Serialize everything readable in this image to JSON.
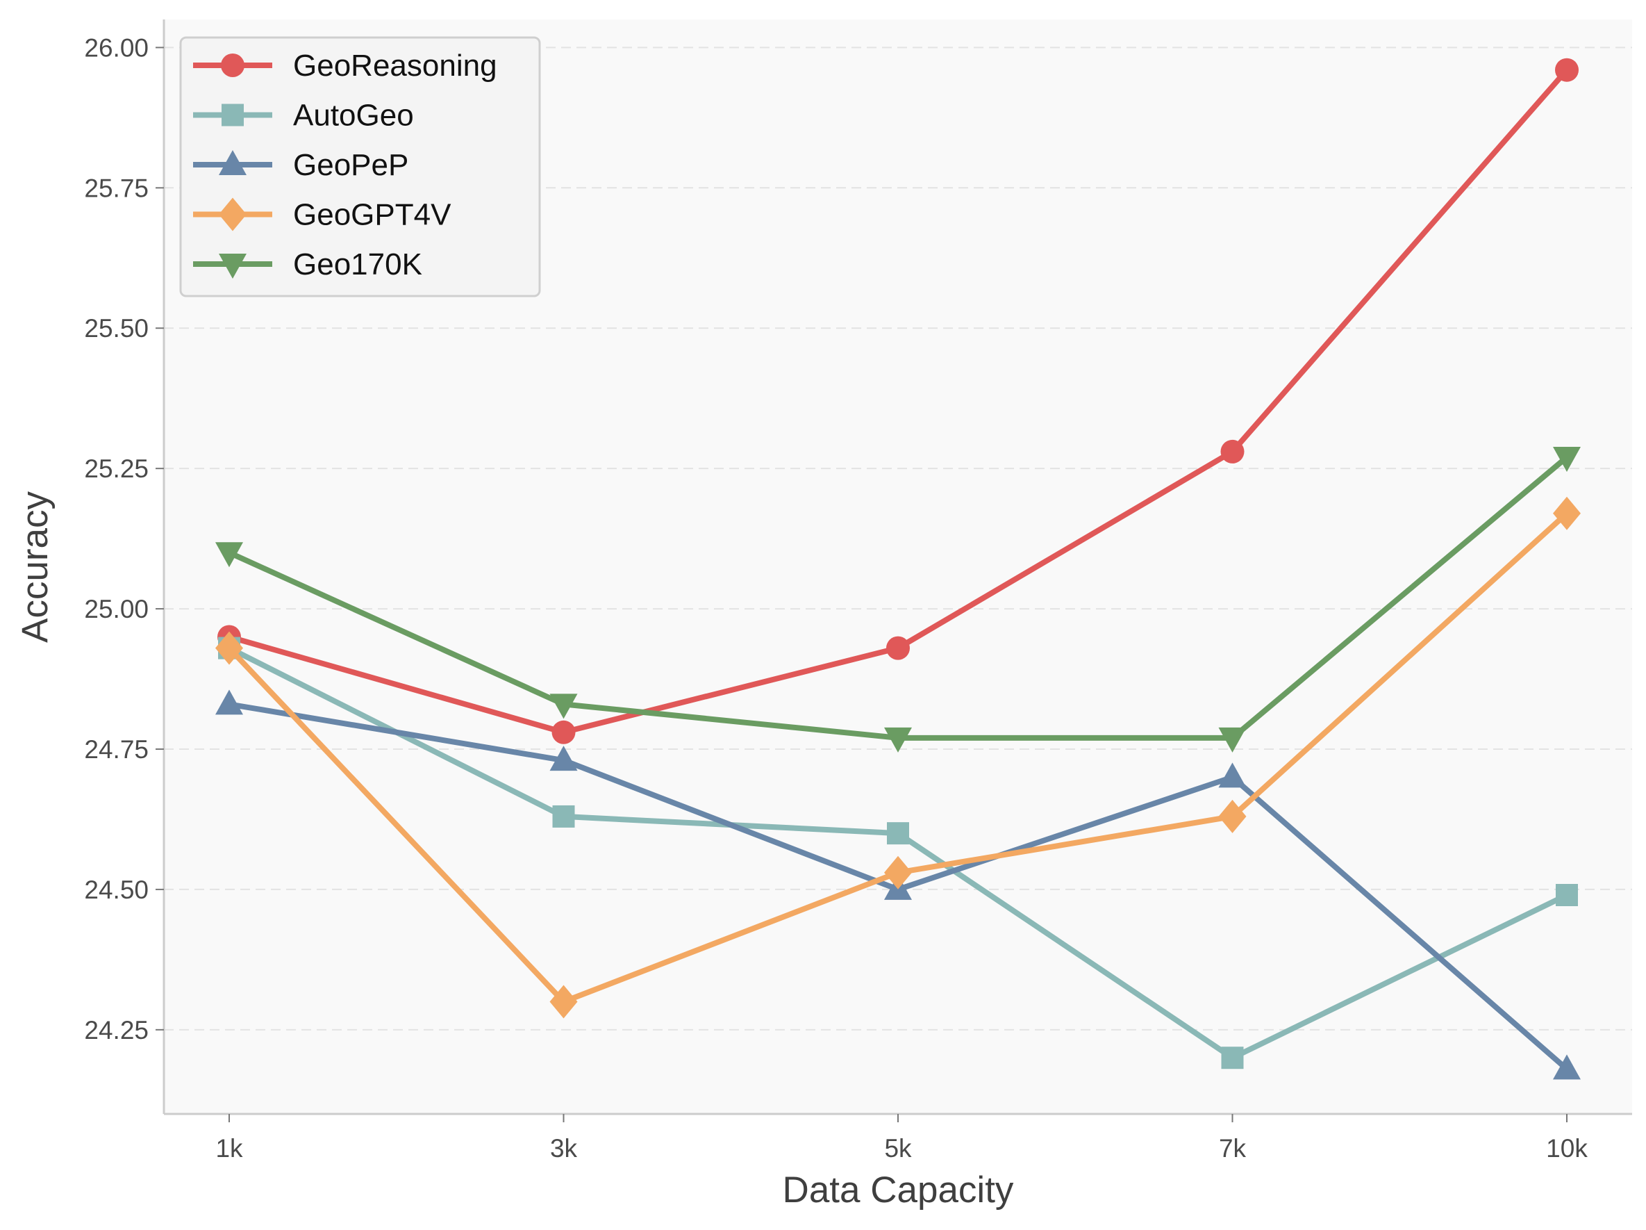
{
  "chart_data": {
    "type": "line",
    "title": "",
    "xlabel": "Data Capacity",
    "ylabel": "Accuracy",
    "categories": [
      "1k",
      "3k",
      "5k",
      "7k",
      "10k"
    ],
    "ylim": [
      24.1,
      26.05
    ],
    "yticks": [
      "24.25",
      "24.50",
      "24.75",
      "25.00",
      "25.25",
      "25.50",
      "25.75",
      "26.00"
    ],
    "grid": "horizontal dashed",
    "legend_position": "upper-left",
    "series": [
      {
        "name": "GeoReasoning",
        "color": "#e05858",
        "marker": "circle",
        "values": [
          24.95,
          24.78,
          24.93,
          25.28,
          25.96
        ]
      },
      {
        "name": "AutoGeo",
        "color": "#8ab8b6",
        "marker": "square",
        "values": [
          24.93,
          24.63,
          24.6,
          24.2,
          24.49
        ]
      },
      {
        "name": "GeoPeP",
        "color": "#6886a8",
        "marker": "triangle-up",
        "values": [
          24.83,
          24.73,
          24.5,
          24.7,
          24.18
        ]
      },
      {
        "name": "GeoGPT4V",
        "color": "#f3a862",
        "marker": "diamond",
        "values": [
          24.93,
          24.3,
          24.53,
          24.63,
          25.17
        ]
      },
      {
        "name": "Geo170K",
        "color": "#6a9c62",
        "marker": "triangle-down",
        "values": [
          25.1,
          24.83,
          24.77,
          24.77,
          25.27
        ]
      }
    ]
  }
}
